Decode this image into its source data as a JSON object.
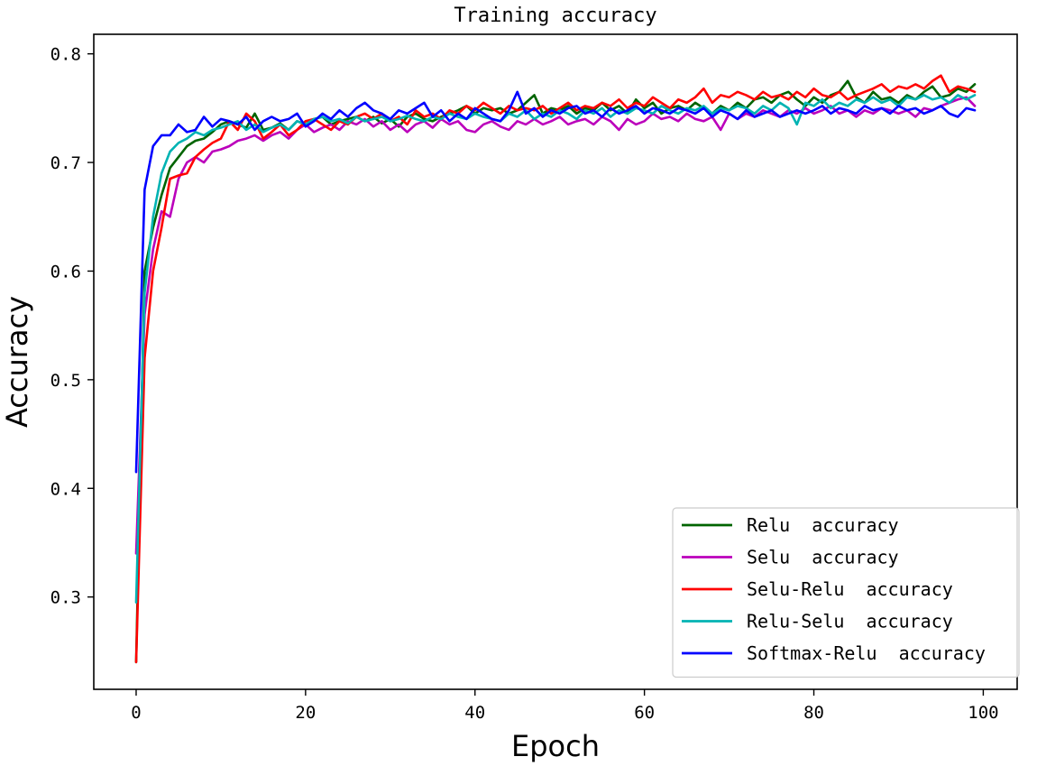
{
  "chart_data": {
    "type": "line",
    "title": "Training accuracy",
    "xlabel": "Epoch",
    "ylabel": "Accuracy",
    "xlim": [
      -5,
      104
    ],
    "ylim": [
      0.215,
      0.818
    ],
    "xticks": [
      0,
      20,
      40,
      60,
      80,
      100
    ],
    "yticks": [
      0.3,
      0.4,
      0.5,
      0.6,
      0.7,
      0.8
    ],
    "xtick_labels": [
      "0",
      "20",
      "40",
      "60",
      "80",
      "100"
    ],
    "ytick_labels": [
      "0.3",
      "0.4",
      "0.5",
      "0.6",
      "0.7",
      "0.8"
    ],
    "legend_position": "lower-right",
    "grid": false,
    "series": [
      {
        "name": "Relu  accuracy",
        "color": "#006400",
        "values": [
          0.24,
          0.6,
          0.64,
          0.67,
          0.695,
          0.705,
          0.715,
          0.72,
          0.722,
          0.728,
          0.735,
          0.738,
          0.735,
          0.732,
          0.745,
          0.73,
          0.732,
          0.736,
          0.73,
          0.738,
          0.735,
          0.74,
          0.742,
          0.735,
          0.738,
          0.74,
          0.742,
          0.738,
          0.742,
          0.736,
          0.74,
          0.733,
          0.742,
          0.745,
          0.74,
          0.738,
          0.742,
          0.745,
          0.748,
          0.752,
          0.745,
          0.75,
          0.748,
          0.75,
          0.745,
          0.748,
          0.755,
          0.762,
          0.745,
          0.75,
          0.748,
          0.752,
          0.745,
          0.75,
          0.748,
          0.755,
          0.748,
          0.752,
          0.745,
          0.758,
          0.75,
          0.755,
          0.745,
          0.75,
          0.752,
          0.748,
          0.755,
          0.75,
          0.745,
          0.752,
          0.748,
          0.755,
          0.75,
          0.758,
          0.76,
          0.755,
          0.762,
          0.765,
          0.758,
          0.752,
          0.76,
          0.755,
          0.762,
          0.765,
          0.775,
          0.76,
          0.755,
          0.765,
          0.758,
          0.76,
          0.755,
          0.762,
          0.758,
          0.765,
          0.77,
          0.76,
          0.762,
          0.768,
          0.765,
          0.772
        ]
      },
      {
        "name": "Selu  accuracy",
        "color": "#bb00bb",
        "values": [
          0.34,
          0.56,
          0.62,
          0.655,
          0.65,
          0.685,
          0.7,
          0.705,
          0.7,
          0.71,
          0.712,
          0.715,
          0.72,
          0.722,
          0.725,
          0.72,
          0.725,
          0.728,
          0.722,
          0.73,
          0.735,
          0.728,
          0.732,
          0.735,
          0.73,
          0.738,
          0.735,
          0.74,
          0.733,
          0.738,
          0.73,
          0.735,
          0.728,
          0.735,
          0.738,
          0.732,
          0.74,
          0.735,
          0.738,
          0.73,
          0.728,
          0.735,
          0.738,
          0.733,
          0.73,
          0.738,
          0.735,
          0.74,
          0.735,
          0.738,
          0.742,
          0.735,
          0.738,
          0.74,
          0.735,
          0.742,
          0.738,
          0.73,
          0.74,
          0.735,
          0.738,
          0.745,
          0.74,
          0.742,
          0.738,
          0.745,
          0.74,
          0.738,
          0.742,
          0.73,
          0.745,
          0.74,
          0.745,
          0.742,
          0.748,
          0.745,
          0.742,
          0.748,
          0.745,
          0.75,
          0.745,
          0.748,
          0.752,
          0.745,
          0.748,
          0.742,
          0.748,
          0.745,
          0.75,
          0.748,
          0.745,
          0.748,
          0.742,
          0.75,
          0.748,
          0.752,
          0.755,
          0.758,
          0.76,
          0.752
        ]
      },
      {
        "name": "Selu-Relu  accuracy",
        "color": "#ff0000",
        "values": [
          0.24,
          0.52,
          0.6,
          0.64,
          0.685,
          0.688,
          0.69,
          0.705,
          0.712,
          0.718,
          0.722,
          0.738,
          0.73,
          0.745,
          0.738,
          0.722,
          0.728,
          0.735,
          0.725,
          0.73,
          0.738,
          0.74,
          0.735,
          0.73,
          0.738,
          0.735,
          0.742,
          0.745,
          0.74,
          0.745,
          0.738,
          0.742,
          0.735,
          0.748,
          0.742,
          0.745,
          0.74,
          0.748,
          0.745,
          0.752,
          0.748,
          0.755,
          0.75,
          0.745,
          0.752,
          0.748,
          0.75,
          0.748,
          0.752,
          0.745,
          0.75,
          0.755,
          0.748,
          0.752,
          0.75,
          0.755,
          0.752,
          0.758,
          0.75,
          0.755,
          0.752,
          0.76,
          0.755,
          0.75,
          0.758,
          0.755,
          0.76,
          0.768,
          0.755,
          0.762,
          0.76,
          0.765,
          0.762,
          0.758,
          0.765,
          0.76,
          0.762,
          0.758,
          0.765,
          0.76,
          0.768,
          0.762,
          0.76,
          0.765,
          0.758,
          0.762,
          0.765,
          0.768,
          0.772,
          0.765,
          0.77,
          0.768,
          0.772,
          0.768,
          0.775,
          0.78,
          0.765,
          0.77,
          0.768,
          0.765
        ]
      },
      {
        "name": "Relu-Selu  accuracy",
        "color": "#00b3b3",
        "values": [
          0.295,
          0.58,
          0.65,
          0.69,
          0.71,
          0.718,
          0.722,
          0.728,
          0.725,
          0.73,
          0.732,
          0.735,
          0.738,
          0.73,
          0.735,
          0.728,
          0.732,
          0.735,
          0.73,
          0.738,
          0.735,
          0.74,
          0.742,
          0.738,
          0.74,
          0.736,
          0.742,
          0.738,
          0.74,
          0.742,
          0.738,
          0.74,
          0.743,
          0.74,
          0.738,
          0.742,
          0.74,
          0.745,
          0.742,
          0.74,
          0.745,
          0.742,
          0.74,
          0.738,
          0.745,
          0.742,
          0.748,
          0.74,
          0.745,
          0.742,
          0.748,
          0.745,
          0.74,
          0.748,
          0.745,
          0.75,
          0.742,
          0.748,
          0.745,
          0.75,
          0.748,
          0.745,
          0.752,
          0.748,
          0.745,
          0.75,
          0.748,
          0.752,
          0.745,
          0.75,
          0.748,
          0.752,
          0.75,
          0.745,
          0.752,
          0.748,
          0.755,
          0.75,
          0.735,
          0.755,
          0.752,
          0.758,
          0.75,
          0.755,
          0.752,
          0.758,
          0.755,
          0.76,
          0.755,
          0.758,
          0.752,
          0.76,
          0.758,
          0.762,
          0.758,
          0.76,
          0.755,
          0.762,
          0.758,
          0.762
        ]
      },
      {
        "name": "Softmax-Relu  accuracy",
        "color": "#0000ff",
        "values": [
          0.415,
          0.675,
          0.715,
          0.725,
          0.725,
          0.735,
          0.728,
          0.73,
          0.742,
          0.733,
          0.74,
          0.738,
          0.735,
          0.742,
          0.73,
          0.738,
          0.742,
          0.738,
          0.74,
          0.745,
          0.733,
          0.738,
          0.745,
          0.74,
          0.748,
          0.742,
          0.75,
          0.755,
          0.748,
          0.745,
          0.74,
          0.748,
          0.745,
          0.75,
          0.755,
          0.742,
          0.748,
          0.738,
          0.745,
          0.74,
          0.75,
          0.745,
          0.74,
          0.738,
          0.748,
          0.765,
          0.745,
          0.75,
          0.742,
          0.748,
          0.745,
          0.75,
          0.752,
          0.745,
          0.748,
          0.742,
          0.75,
          0.745,
          0.748,
          0.752,
          0.745,
          0.75,
          0.748,
          0.745,
          0.75,
          0.748,
          0.745,
          0.75,
          0.742,
          0.748,
          0.745,
          0.74,
          0.748,
          0.742,
          0.745,
          0.748,
          0.742,
          0.745,
          0.748,
          0.745,
          0.748,
          0.752,
          0.745,
          0.75,
          0.748,
          0.745,
          0.752,
          0.748,
          0.75,
          0.745,
          0.752,
          0.748,
          0.75,
          0.745,
          0.748,
          0.752,
          0.745,
          0.742,
          0.75,
          0.748
        ]
      }
    ]
  }
}
